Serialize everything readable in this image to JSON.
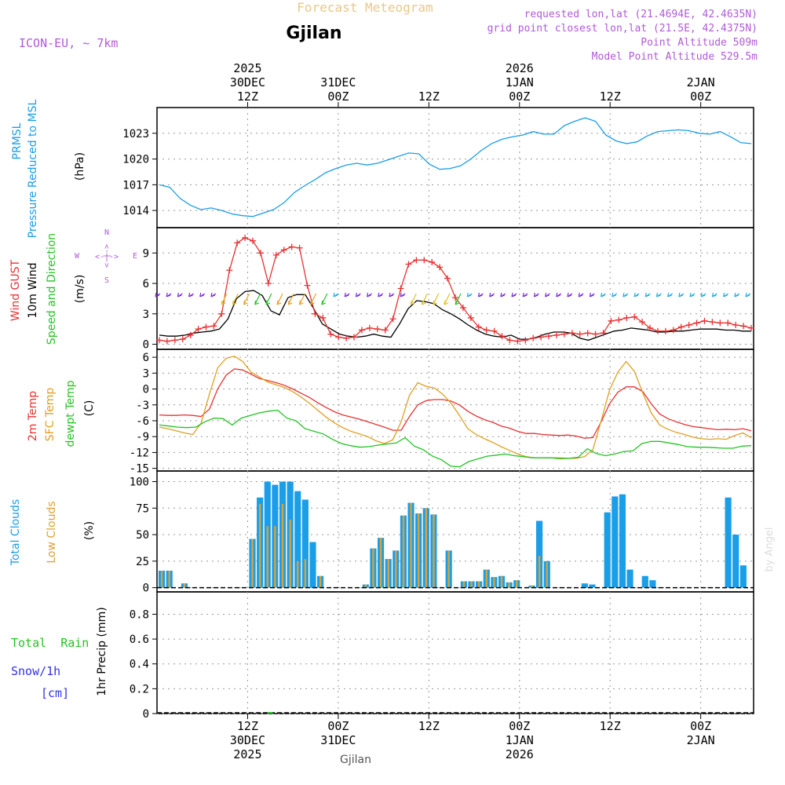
{
  "header": {
    "super_title": "Forecast Meteogram",
    "location": "Gjilan",
    "model": "ICON-EU, ~ 7km",
    "requested": "requested lon,lat (21.4694E, 42.4635N)",
    "grid_point": "grid point closest lon,lat (21.5E, 42.4375N)",
    "point_alt": "Point Altitude 509m",
    "model_alt": "Model Point Altitude 529.5m"
  },
  "time_axis": {
    "top_labels": [
      {
        "hour": 12,
        "lines": [
          "2025",
          "30DEC",
          "12Z"
        ]
      },
      {
        "hour": 24,
        "lines": [
          "",
          "31DEC",
          "00Z"
        ]
      },
      {
        "hour": 36,
        "lines": [
          "",
          "",
          "12Z"
        ]
      },
      {
        "hour": 48,
        "lines": [
          "2026",
          "1JAN",
          "00Z"
        ]
      },
      {
        "hour": 60,
        "lines": [
          "",
          "",
          "12Z"
        ]
      },
      {
        "hour": 72,
        "lines": [
          "",
          "2JAN",
          "00Z"
        ]
      }
    ],
    "bottom_labels": [
      {
        "hour": 12,
        "lines": [
          "12Z",
          "30DEC",
          "2025"
        ]
      },
      {
        "hour": 24,
        "lines": [
          "00Z",
          "31DEC",
          ""
        ]
      },
      {
        "hour": 36,
        "lines": [
          "12Z",
          "",
          ""
        ]
      },
      {
        "hour": 48,
        "lines": [
          "00Z",
          "1JAN",
          "2026"
        ]
      },
      {
        "hour": 60,
        "lines": [
          "12Z",
          "",
          ""
        ]
      },
      {
        "hour": 72,
        "lines": [
          "00Z",
          "2JAN",
          ""
        ]
      }
    ],
    "footer_location": "Gjilan",
    "watermark": "by Angel"
  },
  "colors": {
    "pressure": "#1a9ee8",
    "gust": "#e83232",
    "wind": "#000000",
    "temp2m": "#e83232",
    "sfc": "#e0a020",
    "dewpt": "#22c422",
    "total_cloud": "#1a9ee8",
    "low_cloud": "#e0a030",
    "rain": "#22c422",
    "snow": "#3232e8",
    "header_purple": "#b05ad8",
    "header_orange": "#e8c888"
  },
  "labels": {
    "pressure_title": [
      "PRMSL",
      "Pressure Reduced to MSL"
    ],
    "pressure_unit": "(hPa)",
    "wind_title": [
      "Wind GUST",
      "10m Wind",
      "Speed and Direction"
    ],
    "wind_unit": "(m/s)",
    "compass": {
      "n": "N",
      "s": "S",
      "w": "W",
      "e": "E",
      "ns": "<-|->",
      "we": "<-|->"
    },
    "temp_title": [
      "2m Temp",
      "SFC Temp",
      "dewpt Temp"
    ],
    "temp_unit": "(C)",
    "cloud_title": [
      "Total Clouds",
      "Low Clouds"
    ],
    "cloud_unit": "(%)",
    "precip_legend": [
      "Total  Rain",
      "Snow/1h",
      "[cm]"
    ],
    "precip_unit": "1hr Precip (mm)"
  },
  "chart_data": [
    {
      "type": "line",
      "title": "PRMSL Pressure Reduced to MSL",
      "ylabel": "hPa",
      "ylim": [
        1012,
        1026
      ],
      "yticks": [
        1014,
        1017,
        1020,
        1023
      ],
      "x_hours": [
        0,
        1,
        2,
        3,
        4,
        5,
        6,
        7,
        8,
        9,
        10,
        11,
        12,
        13,
        14,
        15,
        16,
        17,
        18,
        19,
        20,
        21,
        22,
        23,
        24,
        25,
        26,
        27,
        28,
        29,
        30,
        31,
        32,
        33,
        34,
        35,
        36,
        37,
        38,
        39,
        40,
        41,
        42,
        43,
        44,
        45,
        46,
        47,
        48,
        49,
        50,
        51,
        52,
        53,
        54,
        55,
        56,
        57,
        58,
        59,
        60,
        61,
        62,
        63,
        64,
        65,
        66,
        67,
        68,
        69,
        70,
        71,
        72,
        73,
        74,
        75,
        76
      ],
      "series": [
        {
          "name": "PRMSL",
          "values": [
            1017,
            1016.7,
            1015.4,
            1014.6,
            1014.1,
            1014.3,
            1014,
            1013.6,
            1013.4,
            1013.3,
            1013.7,
            1014.1,
            1014.9,
            1016.1,
            1016.9,
            1017.6,
            1018.4,
            1018.9,
            1019.3,
            1019.5,
            1019.3,
            1019.5,
            1019.9,
            1020.3,
            1020.7,
            1020.6,
            1019.4,
            1018.8,
            1018.9,
            1019.2,
            1020,
            1021,
            1021.8,
            1022.3,
            1022.6,
            1022.8,
            1023.2,
            1022.9,
            1022.9,
            1023.9,
            1024.4,
            1024.8,
            1024.4,
            1022.8,
            1022.1,
            1021.8,
            1022,
            1022.7,
            1023.2,
            1023.3,
            1023.4,
            1023.3,
            1023,
            1022.9,
            1023.2,
            1022.6,
            1021.9,
            1021.8
          ]
        }
      ],
      "x_start": 0,
      "x_step": 1.3
    },
    {
      "type": "line",
      "title": "Wind GUST / 10m Wind Speed and Direction",
      "ylabel": "m/s",
      "ylim": [
        -0.5,
        11.5
      ],
      "yticks": [
        0,
        3,
        6,
        9
      ],
      "series": [
        {
          "name": "Wind GUST",
          "values": [
            0.4,
            0.3,
            0.4,
            0.5,
            0.9,
            1.5,
            1.7,
            1.8,
            3.0,
            7.3,
            10.0,
            10.5,
            10.2,
            9.0,
            6.0,
            8.8,
            9.3,
            9.6,
            9.5,
            5.8,
            3.0,
            2.6,
            1.0,
            0.7,
            0.6,
            0.7,
            1.4,
            1.6,
            1.5,
            1.4,
            2.5,
            5.5,
            7.9,
            8.3,
            8.3,
            8.1,
            7.6,
            6.5,
            4.6,
            3.6,
            2.6,
            1.7,
            1.4,
            1.3,
            0.8,
            0.4,
            0.3,
            0.4,
            0.6,
            0.7,
            0.8,
            0.9,
            1.0,
            1.1,
            1.0,
            1.1,
            1.0,
            1.1,
            2.3,
            2.4,
            2.6,
            2.7,
            2.2,
            1.6,
            1.3,
            1.3,
            1.4,
            1.7,
            1.9,
            2.1,
            2.3,
            2.2,
            2.1,
            2.1,
            1.9,
            1.8,
            1.6
          ]
        },
        {
          "name": "10m Wind",
          "values": [
            0.9,
            0.8,
            0.8,
            0.9,
            1.1,
            1.2,
            1.3,
            1.5,
            2.5,
            4.5,
            5.2,
            5.3,
            4.8,
            3.3,
            2.9,
            4.6,
            4.9,
            4.9,
            3.5,
            2.0,
            1.5,
            1.0,
            0.8,
            0.7,
            0.8,
            1.0,
            0.8,
            0.7,
            2.0,
            3.5,
            4.3,
            4.2,
            4.0,
            3.4,
            3.0,
            2.5,
            1.9,
            1.4,
            1.0,
            0.8,
            0.7,
            0.9,
            0.5,
            0.5,
            0.7,
            1.0,
            1.2,
            1.2,
            1.1,
            0.6,
            0.4,
            0.7,
            1.0,
            1.3,
            1.4,
            1.6,
            1.5,
            1.4,
            1.2,
            1.2,
            1.3,
            1.3,
            1.4,
            1.5,
            1.5,
            1.5,
            1.4,
            1.4,
            1.3,
            1.3
          ]
        }
      ],
      "x_start": 0,
      "x_step": 1.0857
    },
    {
      "type": "line",
      "title": "2m Temp / SFC Temp / dewpt Temp",
      "ylabel": "C",
      "ylim": [
        -15.5,
        7.5
      ],
      "yticks": [
        -15,
        -12,
        -9,
        -6,
        -3,
        0,
        3,
        6
      ],
      "series": [
        {
          "name": "2m Temp",
          "values": [
            -4.9,
            -5.0,
            -5.0,
            -4.9,
            -5.0,
            -5.2,
            -3.8,
            0,
            2.6,
            3.8,
            3.6,
            2.8,
            2.0,
            1.6,
            1.2,
            0.7,
            0,
            -0.8,
            -1.6,
            -2.6,
            -3.5,
            -4.3,
            -4.9,
            -5.3,
            -5.7,
            -6.2,
            -6.7,
            -7.2,
            -7.8,
            -7.8,
            -5.2,
            -3.0,
            -2.2,
            -2.0,
            -2.0,
            -2.3,
            -3.0,
            -4.2,
            -5.1,
            -5.8,
            -6.3,
            -7.0,
            -7.4,
            -8.0,
            -8.4,
            -8.4,
            -8.6,
            -8.7,
            -8.8,
            -8.7,
            -8.9,
            -9.3,
            -9.2,
            -6.2,
            -2.8,
            -0.6,
            0.4,
            0.4,
            -0.5,
            -2.8,
            -4.7,
            -5.6,
            -6.2,
            -6.7,
            -7.1,
            -7.3,
            -7.5,
            -7.7,
            -7.6,
            -7.7,
            -7.5,
            -7.9
          ]
        },
        {
          "name": "SFC Temp",
          "values": [
            -7.2,
            -7.5,
            -7.9,
            -8.3,
            -8.6,
            -6.5,
            -1.0,
            4.0,
            5.8,
            6.2,
            5.2,
            3.2,
            2.3,
            1.3,
            0.8,
            0.3,
            -0.5,
            -1.5,
            -2.7,
            -4.0,
            -5.3,
            -6.4,
            -7.3,
            -8.0,
            -8.5,
            -9.0,
            -9.8,
            -10.3,
            -9.6,
            -6.2,
            -1.2,
            1.2,
            0.5,
            0.2,
            -1.0,
            -2.7,
            -5.0,
            -7.5,
            -8.6,
            -9.4,
            -10.1,
            -10.9,
            -11.6,
            -12.3,
            -12.8,
            -13.0,
            -13.0,
            -13.0,
            -13.0,
            -13.1,
            -13.1,
            -12.8,
            -11.5,
            -6.0,
            -0.2,
            3.2,
            5.2,
            3.3,
            -0.8,
            -4.5,
            -6.8,
            -7.6,
            -8.2,
            -8.6,
            -9.1,
            -9.4,
            -9.5,
            -9.4,
            -9.5,
            -8.8,
            -8.3,
            -9.2
          ]
        },
        {
          "name": "dewpt Temp",
          "values": [
            -6.8,
            -7.0,
            -7.2,
            -7.3,
            -7.2,
            -6.2,
            -5.5,
            -5.6,
            -6.8,
            -5.5,
            -5.0,
            -4.5,
            -4.2,
            -4.0,
            -5.5,
            -6.0,
            -7.5,
            -8.0,
            -8.5,
            -9.5,
            -10.3,
            -10.7,
            -11.0,
            -10.9,
            -10.6,
            -10.4,
            -10.2,
            -9.2,
            -10.8,
            -11.5,
            -12.7,
            -13.4,
            -14.6,
            -14.7,
            -13.7,
            -13.2,
            -12.7,
            -12.5,
            -12.3,
            -12.6,
            -12.8,
            -13.0,
            -13.0,
            -13.0,
            -13.2,
            -13.1,
            -12.9,
            -11.3,
            -12.2,
            -12.6,
            -12.3,
            -11.8,
            -11.7,
            -10.3,
            -9.9,
            -9.9,
            -10.2,
            -10.5,
            -10.9,
            -11.0,
            -11.0,
            -11.1,
            -11.2,
            -11.2,
            -10.8,
            -10.7
          ]
        }
      ],
      "x_start": 0,
      "x_step": 1.0857
    },
    {
      "type": "bar",
      "title": "Total Clouds / Low Clouds",
      "ylabel": "%",
      "ylim": [
        -4,
        110
      ],
      "yticks": [
        0,
        25,
        50,
        75,
        100
      ],
      "x_hours": [
        0,
        1,
        3,
        12,
        13,
        14,
        15,
        16,
        17,
        18,
        19,
        20,
        21,
        27,
        28,
        29,
        30,
        31,
        32,
        33,
        34,
        35,
        36,
        38,
        40,
        41,
        42,
        43,
        44,
        45,
        46,
        47,
        49,
        50,
        51,
        56,
        57,
        59,
        60,
        61,
        62,
        64,
        65,
        75,
        76,
        77,
        78,
        79
      ],
      "total": [
        16,
        16,
        4,
        46,
        85,
        100,
        97,
        100,
        100,
        91,
        83,
        43,
        11,
        3,
        37,
        47,
        27,
        35,
        68,
        80,
        70,
        75,
        69,
        35,
        6,
        6,
        6,
        17,
        10,
        11,
        5,
        7,
        2,
        63,
        25,
        4,
        3,
        71,
        86,
        88,
        17,
        11,
        7,
        85,
        50,
        21,
        0,
        0
      ],
      "low": [
        16,
        16,
        4,
        46,
        79,
        58,
        58,
        79,
        64,
        25,
        27,
        0,
        11,
        3,
        37,
        47,
        27,
        35,
        68,
        80,
        70,
        75,
        69,
        35,
        6,
        6,
        6,
        17,
        10,
        11,
        5,
        7,
        2,
        30,
        24,
        0,
        0,
        0,
        0,
        0,
        0,
        0,
        0,
        0,
        0,
        0,
        0,
        0
      ]
    },
    {
      "type": "line",
      "title": "1hr Precip",
      "ylabel": "mm",
      "ylim": [
        0,
        0.98
      ],
      "yticks": [
        0,
        0.2,
        0.4,
        0.6,
        0.8
      ],
      "series": [
        {
          "name": "Total Rain",
          "values": [
            0
          ]
        },
        {
          "name": "Snow/1h",
          "values": [
            0
          ]
        }
      ]
    }
  ]
}
